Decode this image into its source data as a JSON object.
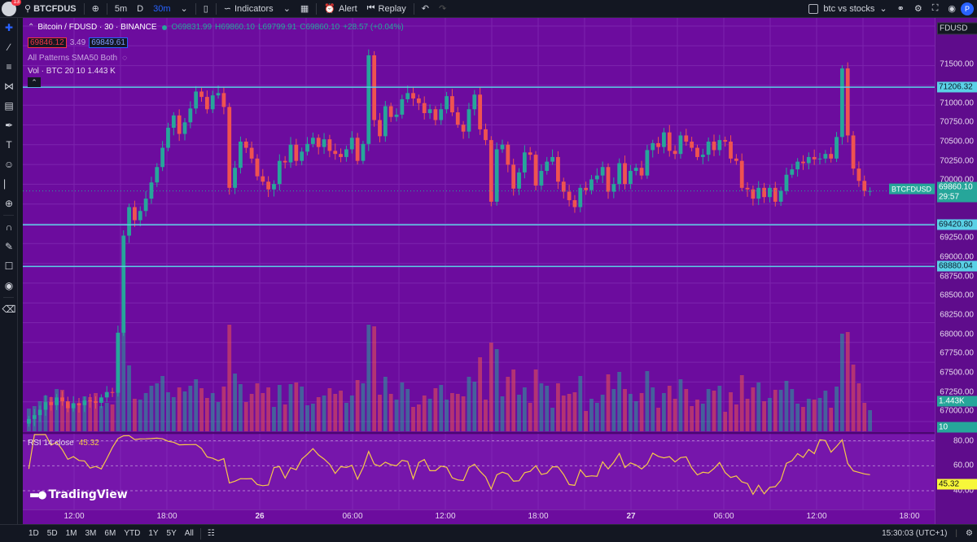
{
  "topbar": {
    "notification_count": "13",
    "symbol": "BTCFDUS",
    "intervals": [
      "5m",
      "D",
      "30m"
    ],
    "active_interval": "30m",
    "indicators_label": "Indicators",
    "alert_label": "Alert",
    "replay_label": "Replay",
    "layout_name": "btc vs stocks",
    "avatar_letter": "P"
  },
  "legend": {
    "title": "Bitcoin / FDUSD · 30 · BINANCE",
    "o": "O69831.99",
    "h": "H69860.10",
    "l": "L69799.91",
    "c": "C69860.10",
    "change": "+28.57 (+0.04%)",
    "sell_price": "69846.12",
    "spread": "3.49",
    "buy_price": "69849.61",
    "patterns": "All Patterns SMA50 Both",
    "volume": "Vol · BTC  20  10  1.443 K",
    "rsi_label": "RSI  14 close",
    "rsi_value": "45.32"
  },
  "chart_data": {
    "type": "candlestick",
    "symbol": "BTCFDUSD",
    "exchange": "BINANCE",
    "interval": "30",
    "price_axis": {
      "range": [
        66740,
        72000
      ],
      "ticks": [
        "71500.00",
        "71000.00",
        "70750.00",
        "70500.00",
        "70250.00",
        "70000.00",
        "69250.00",
        "69000.00",
        "68750.00",
        "68500.00",
        "68250.00",
        "68000.00",
        "67750.00",
        "67500.00",
        "67250.00",
        "67000.00"
      ],
      "quote_currency": "FDUSD"
    },
    "horizontal_lines": [
      71206.32,
      69420.8,
      68880.04
    ],
    "last_price": 69860.1,
    "countdown": "29:57",
    "volume_axis_label": "1.443K",
    "volume_tag": "10",
    "rsi_axis": {
      "ticks": [
        "80.00",
        "60.00",
        "40.00"
      ],
      "range": [
        25,
        85
      ],
      "current": 45.32
    },
    "time_axis": [
      "12:00",
      "18:00",
      "26",
      "06:00",
      "12:00",
      "18:00",
      "27",
      "06:00",
      "12:00",
      "18:00"
    ],
    "candles_close": [
      66900,
      66950,
      67020,
      67120,
      67080,
      67180,
      67130,
      67040,
      67100,
      67080,
      67140,
      67130,
      67110,
      67180,
      67250,
      67240,
      68020,
      69280,
      69650,
      69480,
      69600,
      69760,
      69970,
      70170,
      70420,
      70680,
      70840,
      70600,
      70750,
      70930,
      71150,
      71080,
      70920,
      71100,
      71130,
      70950,
      69900,
      70160,
      70500,
      70420,
      70280,
      70050,
      69980,
      69880,
      69950,
      70250,
      70230,
      70460,
      70250,
      70370,
      70470,
      70550,
      70430,
      70530,
      70380,
      70340,
      70300,
      70400,
      70550,
      70250,
      70470,
      71620,
      70780,
      70570,
      70960,
      70820,
      70850,
      71050,
      71130,
      71060,
      71000,
      70870,
      70920,
      70780,
      70920,
      71090,
      70880,
      70720,
      70630,
      70920,
      71110,
      70660,
      70520,
      69720,
      70400,
      70460,
      70200,
      69890,
      70100,
      70360,
      70330,
      69930,
      70120,
      70240,
      70300,
      69980,
      69850,
      69740,
      69650,
      69900,
      69870,
      70010,
      70060,
      70170,
      69850,
      69950,
      70220,
      69950,
      70120,
      70160,
      70060,
      70390,
      70480,
      70430,
      70620,
      70380,
      70340,
      70580,
      70500,
      70420,
      70300,
      70330,
      70500,
      70390,
      70520,
      70500,
      70280,
      70250,
      69900,
      69880,
      69760,
      69900,
      69780,
      69900,
      69720,
      69860,
      70070,
      70140,
      70240,
      70220,
      70300,
      70270,
      70280,
      70340,
      70280,
      70560,
      71450,
      70580,
      70150,
      69990,
      69860,
      69860
    ]
  },
  "footer": {
    "ranges": [
      "1D",
      "5D",
      "1M",
      "3M",
      "6M",
      "YTD",
      "1Y",
      "5Y",
      "All"
    ],
    "clock": "15:30:03 (UTC+1)"
  },
  "brand": "TradingView"
}
